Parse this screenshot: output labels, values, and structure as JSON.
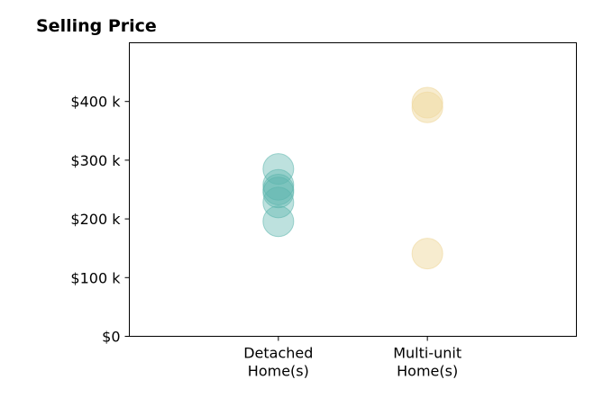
{
  "chart_data": {
    "type": "scatter",
    "title": "Selling Price",
    "xlabel": "",
    "ylabel": "",
    "categories": [
      [
        "Detached",
        "Home(s)"
      ],
      [
        "Multi-unit",
        "Home(s)"
      ]
    ],
    "x_range": [
      0,
      3
    ],
    "ylim": [
      0,
      500000
    ],
    "y_ticks": [
      0,
      100000,
      200000,
      300000,
      400000
    ],
    "y_tick_labels": [
      "$0",
      "$100 k",
      "$200 k",
      "$300 k",
      "$400 k"
    ],
    "grid": false,
    "legend": "none",
    "series": [
      {
        "color": "#5ab4ac",
        "opacity": 0.4,
        "points": [
          {
            "x": 1,
            "y": 285000
          },
          {
            "x": 1,
            "y": 258000
          },
          {
            "x": 1,
            "y": 250000
          },
          {
            "x": 1,
            "y": 245000
          },
          {
            "x": 1,
            "y": 228000
          },
          {
            "x": 1,
            "y": 196000
          }
        ]
      },
      {
        "color": "#f0d9a0",
        "opacity": 0.5,
        "points": [
          {
            "x": 2,
            "y": 398000
          },
          {
            "x": 2,
            "y": 390000
          },
          {
            "x": 2,
            "y": 141000
          }
        ]
      }
    ]
  }
}
